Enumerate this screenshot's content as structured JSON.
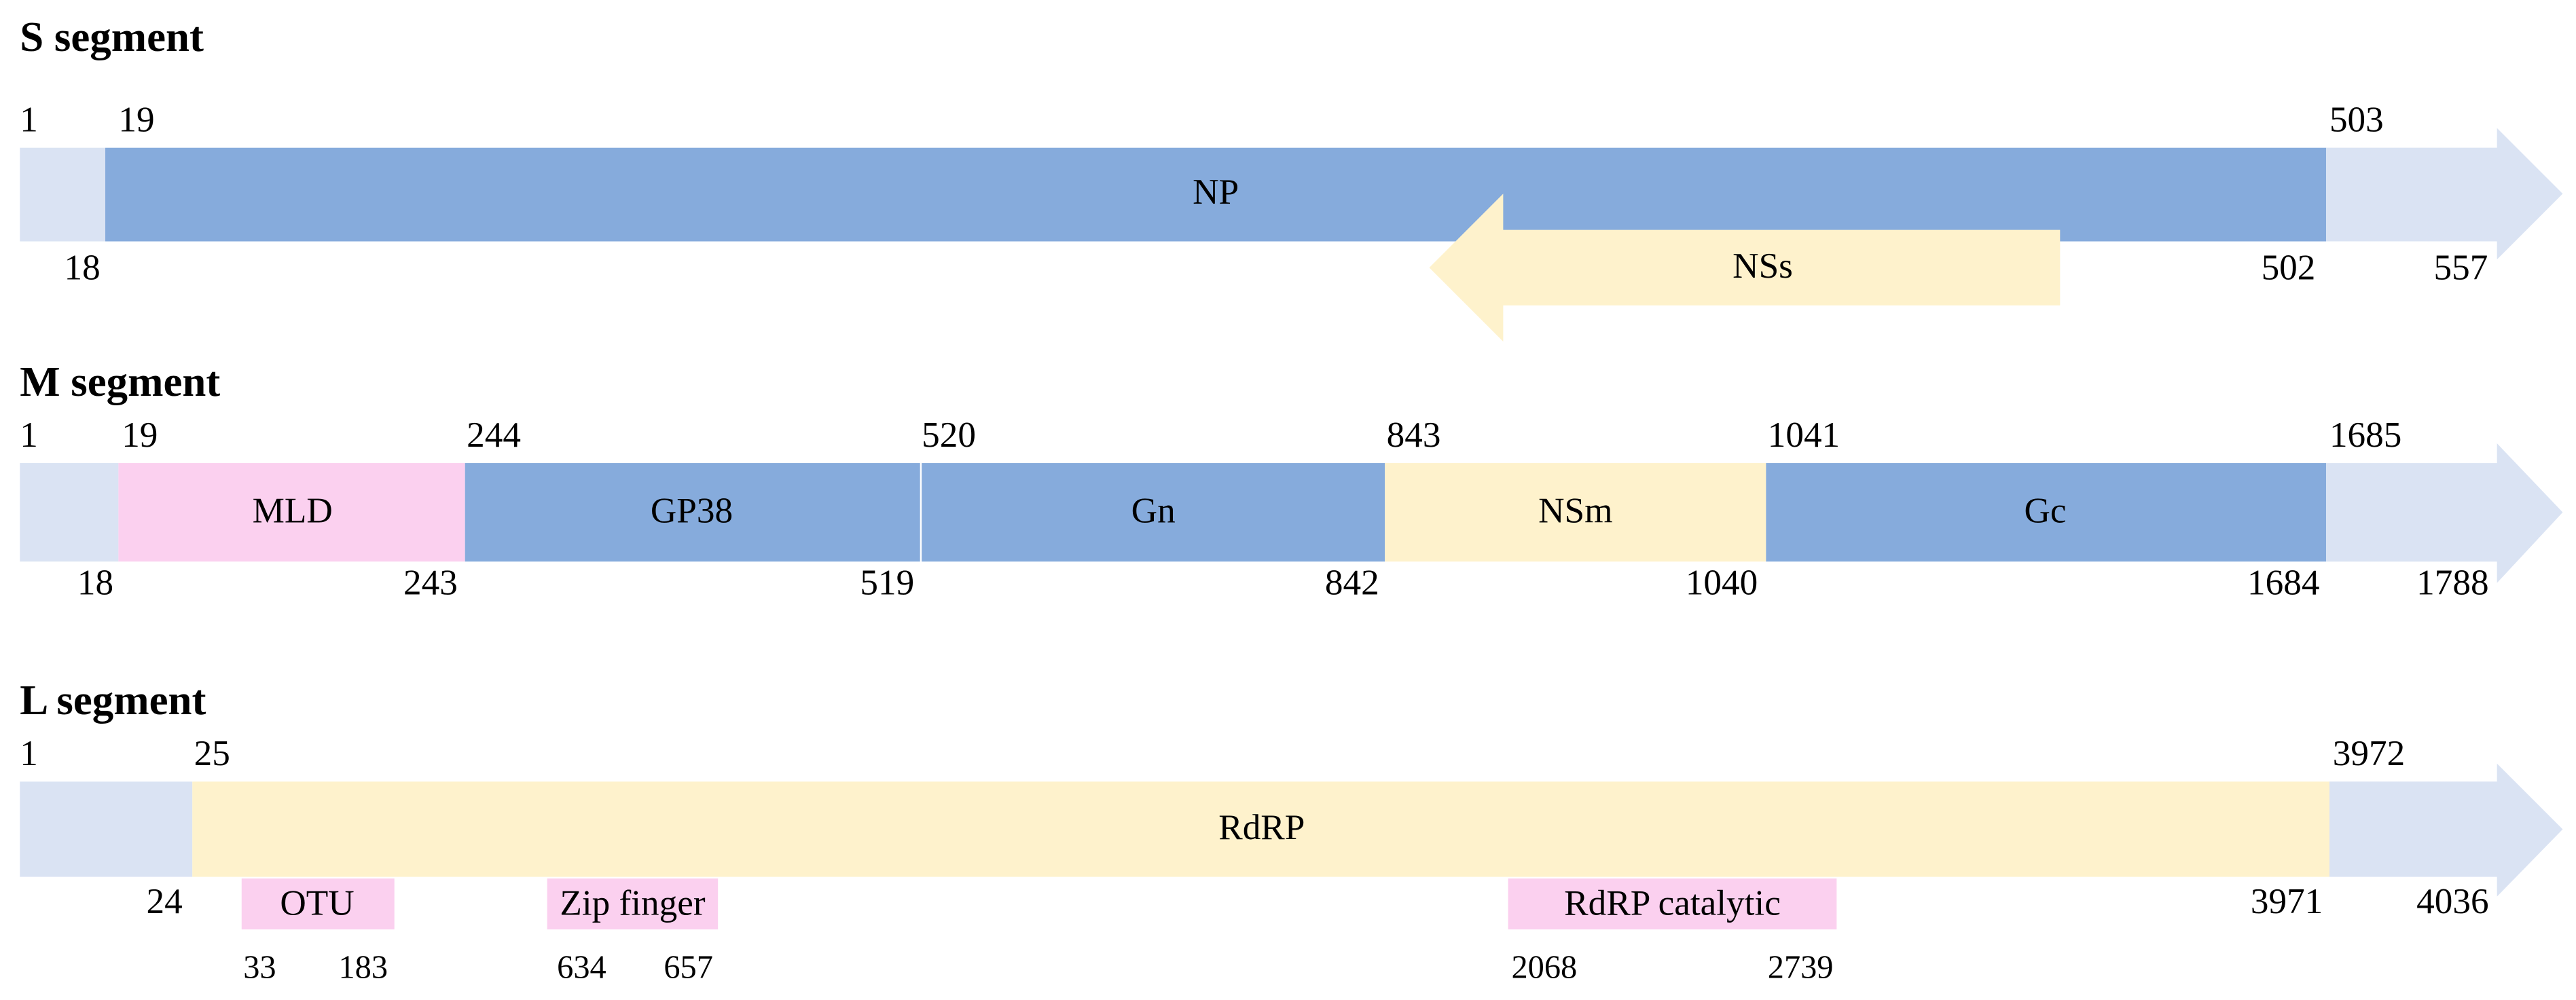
{
  "segments": [
    {
      "title": "S segment",
      "top_numbers": [
        1,
        19,
        503
      ],
      "bottom_numbers": [
        18,
        502,
        557
      ],
      "features": [
        "NP",
        "NSs"
      ]
    },
    {
      "title": "M segment",
      "top_numbers": [
        1,
        19,
        244,
        520,
        843,
        1041,
        1685
      ],
      "bottom_numbers": [
        18,
        243,
        519,
        842,
        1040,
        1684,
        1788
      ],
      "features": [
        "MLD",
        "GP38",
        "Gn",
        "NSm",
        "Gc"
      ]
    },
    {
      "title": "L segment",
      "top_numbers": [
        1,
        25,
        3972
      ],
      "bottom_numbers": [
        24,
        3971,
        4036
      ],
      "features": [
        "RdRP"
      ],
      "domains": [
        {
          "label": "OTU",
          "start": 33,
          "end": 183
        },
        {
          "label": "Zip finger",
          "start": 634,
          "end": 657
        },
        {
          "label": "RdRP catalytic",
          "start": 2068,
          "end": 2739
        }
      ]
    }
  ]
}
